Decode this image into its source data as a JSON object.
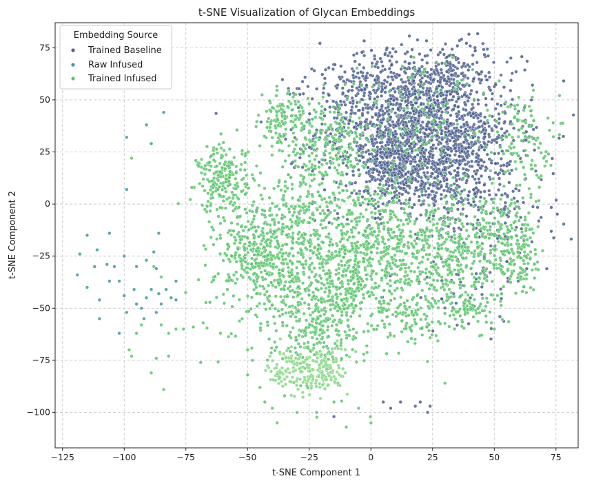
{
  "chart_data": {
    "type": "scatter",
    "title": "t-SNE Visualization of Glycan Embeddings",
    "xlabel": "t-SNE Component 1",
    "ylabel": "t-SNE Component 2",
    "xlim": [
      -128,
      84
    ],
    "ylim": [
      -117,
      87
    ],
    "xticks": [
      -125,
      -100,
      -75,
      -50,
      -25,
      0,
      25,
      50,
      75
    ],
    "yticks": [
      -100,
      -75,
      -50,
      -25,
      0,
      25,
      50,
      75
    ],
    "xtick_labels": [
      "−125",
      "−100",
      "−75",
      "−50",
      "−25",
      "0",
      "25",
      "50",
      "75"
    ],
    "ytick_labels": [
      "−100",
      "−75",
      "−50",
      "−25",
      "0",
      "25",
      "50",
      "75"
    ],
    "grid": true,
    "legend": {
      "title": "Embedding Source",
      "placement": "upper-left",
      "entries": [
        "Trained Baseline",
        "Raw Infused",
        "Trained Infused"
      ]
    },
    "series": [
      {
        "name": "Trained Baseline",
        "color": "#4c5f8e",
        "clusters": [
          {
            "cx": 18,
            "cy": 35,
            "sx": 20,
            "sy": 18,
            "n": 1350
          },
          {
            "cx": 10,
            "cy": 20,
            "sx": 6,
            "sy": 8,
            "n": 320
          },
          {
            "cx": 18,
            "cy": 50,
            "sx": 10,
            "sy": 10,
            "n": 220
          },
          {
            "cx": 42,
            "cy": 28,
            "sx": 8,
            "sy": 8,
            "n": 150
          },
          {
            "cx": 28,
            "cy": 10,
            "sx": 14,
            "sy": 10,
            "n": 180
          },
          {
            "cx": 50,
            "cy": -5,
            "sx": 12,
            "sy": 14,
            "n": 120
          },
          {
            "cx": 35,
            "cy": 65,
            "sx": 12,
            "sy": 6,
            "n": 90
          },
          {
            "cx": -5,
            "cy": 58,
            "sx": 10,
            "sy": 8,
            "n": 90
          },
          {
            "cx": 40,
            "cy": -40,
            "sx": 14,
            "sy": 12,
            "n": 45
          }
        ],
        "points": [
          [
            5,
            -95
          ],
          [
            8,
            -98
          ],
          [
            18,
            -97
          ],
          [
            20,
            -95
          ],
          [
            23,
            -100
          ],
          [
            -15,
            -102
          ],
          [
            12,
            -95
          ],
          [
            24,
            -97
          ]
        ]
      },
      {
        "name": "Raw Infused",
        "color": "#3a9aa0",
        "points": [
          [
            -99,
            32
          ],
          [
            -91,
            38
          ],
          [
            -89,
            29
          ],
          [
            -99,
            7
          ],
          [
            -84,
            44
          ],
          [
            -115,
            -15
          ],
          [
            -106,
            -14
          ],
          [
            -111,
            -22
          ],
          [
            -107,
            -29
          ],
          [
            -112,
            -30
          ],
          [
            -118,
            -24
          ],
          [
            -119,
            -34
          ],
          [
            -115,
            -40
          ],
          [
            -104,
            -30
          ],
          [
            -106,
            -37
          ],
          [
            -102,
            -37
          ],
          [
            -100,
            -44
          ],
          [
            -99,
            -52
          ],
          [
            -102,
            -62
          ],
          [
            -110,
            -46
          ],
          [
            -110,
            -55
          ],
          [
            -96,
            -41
          ],
          [
            -95,
            -48
          ],
          [
            -93,
            -50
          ],
          [
            -91,
            -45
          ],
          [
            -91,
            -27
          ],
          [
            -86,
            -14
          ],
          [
            -88,
            -23
          ],
          [
            -86,
            -43
          ],
          [
            -83,
            -41
          ],
          [
            -81,
            -45
          ],
          [
            -79,
            -37
          ],
          [
            -79,
            -46
          ],
          [
            -87,
            -31
          ],
          [
            -95,
            -30
          ],
          [
            -89,
            -41
          ],
          [
            -92,
            -55
          ],
          [
            -87,
            -52
          ],
          [
            -85,
            -48
          ],
          [
            -100,
            -25
          ]
        ]
      },
      {
        "name": "Trained Infused",
        "color": "#5cc46c",
        "clusters": [
          {
            "cx": -25,
            "cy": -20,
            "sx": 15,
            "sy": 24,
            "n": 700
          },
          {
            "cx": -45,
            "cy": -25,
            "sx": 9,
            "sy": 14,
            "n": 360
          },
          {
            "cx": -60,
            "cy": 12,
            "sx": 5,
            "sy": 8,
            "n": 200
          },
          {
            "cx": -35,
            "cy": 40,
            "sx": 5,
            "sy": 6,
            "n": 120
          },
          {
            "cx": -15,
            "cy": 30,
            "sx": 7,
            "sy": 10,
            "n": 150
          },
          {
            "cx": 2,
            "cy": -20,
            "sx": 9,
            "sy": 15,
            "n": 320
          },
          {
            "cx": 25,
            "cy": -25,
            "sx": 10,
            "sy": 14,
            "n": 330
          },
          {
            "cx": 48,
            "cy": -20,
            "sx": 10,
            "sy": 15,
            "n": 260
          },
          {
            "cx": -10,
            "cy": -40,
            "sx": 8,
            "sy": 8,
            "n": 120
          },
          {
            "cx": 60,
            "cy": 30,
            "sx": 6,
            "sy": 12,
            "n": 110
          },
          {
            "cx": 60,
            "cy": -20,
            "sx": 4,
            "sy": 10,
            "n": 90
          },
          {
            "cx": -20,
            "cy": -60,
            "sx": 8,
            "sy": 9,
            "n": 150
          },
          {
            "cx": 15,
            "cy": -55,
            "sx": 8,
            "sy": 6,
            "n": 90
          },
          {
            "cx": 40,
            "cy": -50,
            "sx": 6,
            "sy": 4,
            "n": 70
          },
          {
            "cx": 20,
            "cy": 40,
            "sx": 15,
            "sy": 15,
            "n": 130
          }
        ],
        "points": [
          [
            -97,
            22
          ],
          [
            -85,
            -35
          ],
          [
            -88,
            -30
          ],
          [
            -85,
            -58
          ],
          [
            -82,
            -62
          ],
          [
            -87,
            -74
          ],
          [
            -82,
            -73
          ],
          [
            -79,
            -60
          ],
          [
            -76,
            -60
          ],
          [
            -72,
            -59
          ],
          [
            -69,
            -76
          ],
          [
            -61,
            -62
          ],
          [
            -68,
            -57
          ],
          [
            -95,
            -62
          ],
          [
            -97,
            -73
          ],
          [
            -89,
            -81
          ],
          [
            -84,
            -89
          ],
          [
            -93,
            -58
          ],
          [
            -98,
            -70
          ],
          [
            -45,
            -88
          ],
          [
            -43,
            -95
          ],
          [
            -40,
            -98
          ],
          [
            -35,
            -92
          ],
          [
            -38,
            -105
          ],
          [
            -30,
            -100
          ],
          [
            -22,
            -100
          ],
          [
            -10,
            -107
          ],
          [
            -5,
            -98
          ],
          [
            0,
            -105
          ],
          [
            -15,
            -95
          ],
          [
            -48,
            -75
          ],
          [
            -50,
            -70
          ],
          [
            -50,
            -82
          ],
          [
            30,
            -86
          ],
          [
            50,
            -60
          ],
          [
            72,
            24
          ],
          [
            68,
            27
          ],
          [
            70,
            22
          ],
          [
            66,
            40
          ],
          [
            62,
            45
          ]
        ]
      },
      {
        "name": "",
        "color": "#86d884",
        "clusters": [
          {
            "cx": -25,
            "cy": -80,
            "sx": 8,
            "sy": 6,
            "n": 220
          }
        ],
        "points": []
      }
    ]
  }
}
